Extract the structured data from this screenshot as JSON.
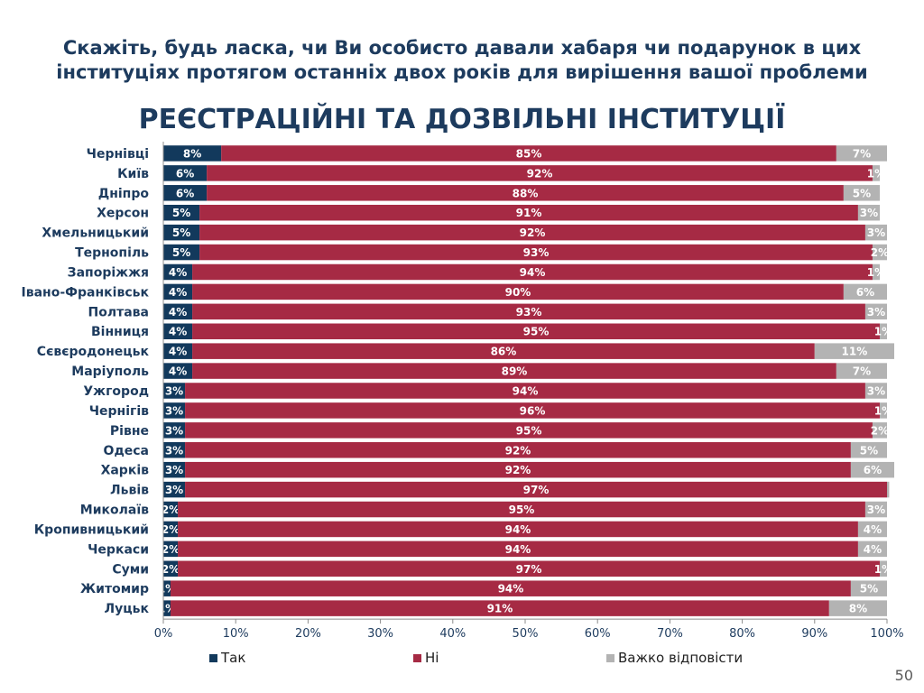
{
  "header": {
    "question": "Скажіть, будь ласка, чи Ви особисто давали хабаря чи подарунок в цих інституціях протягом останніх двох років для вирішення вашої проблеми",
    "subtitle": "РЕЄСТРАЦІЙНІ ТА ДОЗВІЛЬНІ ІНСТИТУЦІЇ"
  },
  "page_number": "50",
  "chart_data": {
    "type": "bar",
    "orientation": "horizontal",
    "stacked": "percent",
    "categories": [
      "Чернівці",
      "Київ",
      "Дніпро",
      "Херсон",
      "Хмельницький",
      "Тернопіль",
      "Запоріжжя",
      "Івано-Франківськ",
      "Полтава",
      "Вінниця",
      "Сєвєродонецьк",
      "Маріуполь",
      "Ужгород",
      "Чернігів",
      "Рівне",
      "Одеса",
      "Харків",
      "Львів",
      "Миколаїв",
      "Кропивницький",
      "Черкаси",
      "Суми",
      "Житомир",
      "Луцьк"
    ],
    "series": [
      {
        "name": "Так",
        "color": "#12395c",
        "values": [
          8,
          6,
          6,
          5,
          5,
          5,
          4,
          4,
          4,
          4,
          4,
          4,
          3,
          3,
          3,
          3,
          3,
          3,
          2,
          2,
          2,
          2,
          1,
          1
        ],
        "labels": [
          "8%",
          "6%",
          "6%",
          "5%",
          "5%",
          "5%",
          "4%",
          "4%",
          "4%",
          "4%",
          "4%",
          "4%",
          "3%",
          "3%",
          "3%",
          "3%",
          "3%",
          "3%",
          "2%",
          "2%",
          "2%",
          "2%",
          "1%",
          "1%"
        ]
      },
      {
        "name": "Ні",
        "color": "#a62a44",
        "values": [
          85,
          92,
          88,
          91,
          92,
          93,
          94,
          90,
          93,
          95,
          86,
          89,
          94,
          96,
          95,
          92,
          92,
          97,
          95,
          94,
          94,
          97,
          94,
          91
        ],
        "labels": [
          "85%",
          "92%",
          "88%",
          "91%",
          "92%",
          "93%",
          "94%",
          "90%",
          "93%",
          "95%",
          "86%",
          "89%",
          "94%",
          "96%",
          "95%",
          "92%",
          "92%",
          "97%",
          "95%",
          "94%",
          "94%",
          "97%",
          "94%",
          "91%"
        ]
      },
      {
        "name": "Важко відповісти",
        "color": "#b3b3b3",
        "values": [
          7,
          1,
          5,
          3,
          3,
          2,
          1,
          6,
          3,
          1,
          11,
          7,
          3,
          1,
          2,
          5,
          6,
          0.3,
          3,
          4,
          4,
          1,
          5,
          8
        ],
        "labels": [
          "7%",
          "1%",
          "5%",
          "3%",
          "3%",
          "2%",
          "1%",
          "6%",
          "3%",
          "1%",
          "11%",
          "7%",
          "3%",
          "1%",
          "2%",
          "5%",
          "6%",
          "",
          "3%",
          "4%",
          "4%",
          "1%",
          "5%",
          "8%"
        ]
      }
    ],
    "xlim": [
      0,
      100
    ],
    "xticks": [
      "0%",
      "10%",
      "20%",
      "30%",
      "40%",
      "50%",
      "60%",
      "70%",
      "80%",
      "90%",
      "100%"
    ],
    "grid": false,
    "legend_position": "bottom"
  }
}
